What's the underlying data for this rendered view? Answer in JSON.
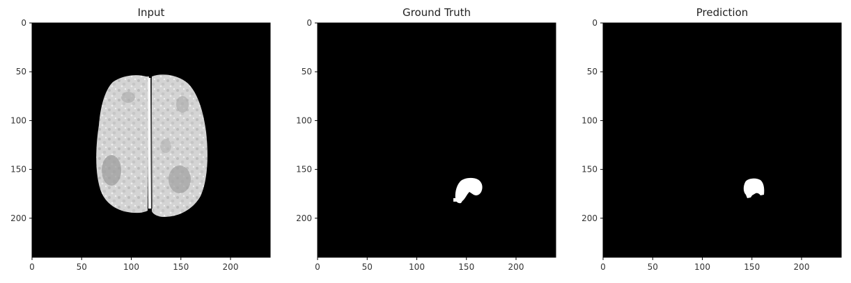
{
  "figure": {
    "panels": [
      {
        "title": "Input"
      },
      {
        "title": "Ground Truth"
      },
      {
        "title": "Prediction"
      }
    ],
    "axis": {
      "xlim": [
        0,
        240
      ],
      "ylim": [
        240,
        0
      ],
      "x_ticks": [
        "0",
        "50",
        "100",
        "150",
        "200"
      ],
      "y_ticks": [
        "0",
        "50",
        "100",
        "150",
        "200"
      ]
    },
    "colors": {
      "background": "#000000",
      "mask": "#ffffff",
      "brain_light": "#d9d9d9",
      "brain_mid": "#b5b5b5",
      "brain_dark": "#8a8a8a"
    }
  }
}
